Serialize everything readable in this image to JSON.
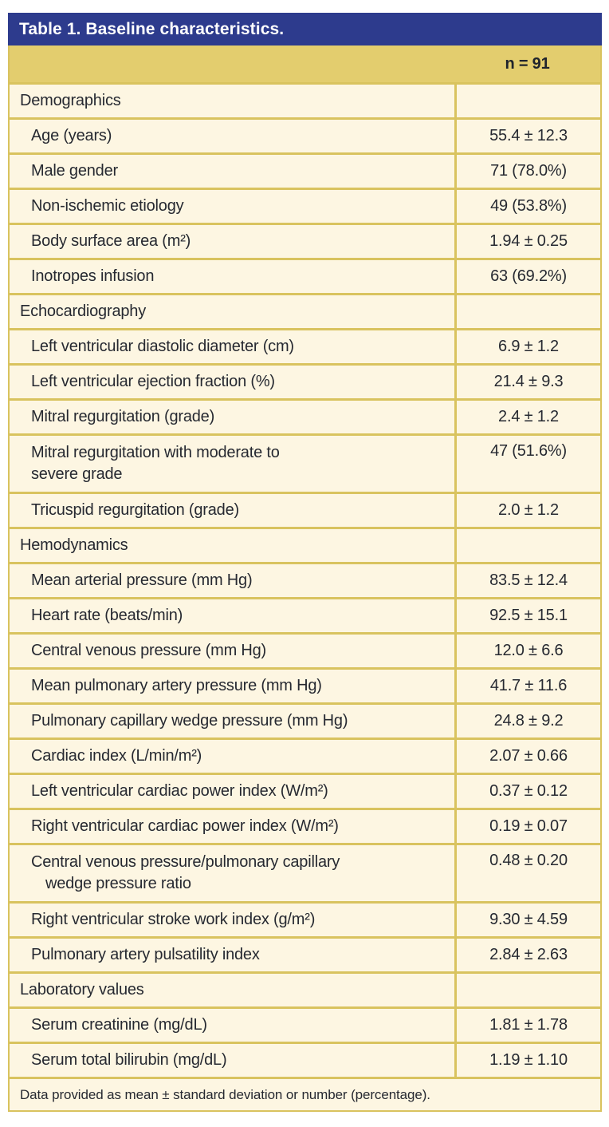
{
  "table": {
    "title": "Table 1. Baseline characteristics.",
    "column_header": "n = 91",
    "footnote": "Data provided as mean ± standard deviation or number (percentage).",
    "colors": {
      "header_bg": "#2d3b8d",
      "header_text": "#ffffff",
      "band_bg": "#e3cd6e",
      "row_bg": "#fdf6e2",
      "border": "#d9c35f",
      "text": "#262931"
    },
    "sections": [
      {
        "name": "Demographics",
        "rows": [
          {
            "label": "Age (years)",
            "value": "55.4 ± 12.3"
          },
          {
            "label": "Male gender",
            "value": "71 (78.0%)"
          },
          {
            "label": "Non-ischemic etiology",
            "value": "49 (53.8%)"
          },
          {
            "label": "Body surface area (m²)",
            "value": "1.94 ± 0.25"
          },
          {
            "label": "Inotropes infusion",
            "value": "63 (69.2%)"
          }
        ]
      },
      {
        "name": "Echocardiography",
        "rows": [
          {
            "label": "Left ventricular diastolic diameter (cm)",
            "value": "6.9 ± 1.2"
          },
          {
            "label": "Left ventricular ejection fraction (%)",
            "value": "21.4 ± 9.3"
          },
          {
            "label": "Mitral regurgitation (grade)",
            "value": "2.4 ± 1.2"
          },
          {
            "label": "Mitral regurgitation with moderate to\nsevere grade",
            "value": "47 (51.6%)",
            "twoline": true
          },
          {
            "label": "Tricuspid regurgitation (grade)",
            "value": "2.0 ± 1.2"
          }
        ]
      },
      {
        "name": "Hemodynamics",
        "rows": [
          {
            "label": "Mean arterial pressure (mm Hg)",
            "value": "83.5 ± 12.4"
          },
          {
            "label": "Heart rate (beats/min)",
            "value": "92.5 ± 15.1"
          },
          {
            "label": "Central venous pressure (mm Hg)",
            "value": "12.0 ± 6.6"
          },
          {
            "label": "Mean pulmonary artery pressure (mm Hg)",
            "value": "41.7 ± 11.6"
          },
          {
            "label": "Pulmonary capillary wedge pressure (mm Hg)",
            "value": "24.8 ± 9.2"
          },
          {
            "label": "Cardiac index (L/min/m²)",
            "value": "2.07 ± 0.66"
          },
          {
            "label": "Left ventricular cardiac power index (W/m²)",
            "value": "0.37 ± 0.12"
          },
          {
            "label": "Right ventricular cardiac power index (W/m²)",
            "value": "0.19 ± 0.07"
          },
          {
            "label": "Central venous pressure/pulmonary capillary\nwedge pressure ratio",
            "value": "0.48 ± 0.20",
            "twoline": true,
            "hang": true
          },
          {
            "label": "Right ventricular stroke work index (g/m²)",
            "value": "9.30 ± 4.59"
          },
          {
            "label": "Pulmonary artery pulsatility index",
            "value": "2.84 ± 2.63"
          }
        ]
      },
      {
        "name": "Laboratory values",
        "rows": [
          {
            "label": "Serum creatinine (mg/dL)",
            "value": "1.81 ± 1.78"
          },
          {
            "label": "Serum total bilirubin (mg/dL)",
            "value": "1.19 ± 1.10"
          }
        ]
      }
    ]
  }
}
